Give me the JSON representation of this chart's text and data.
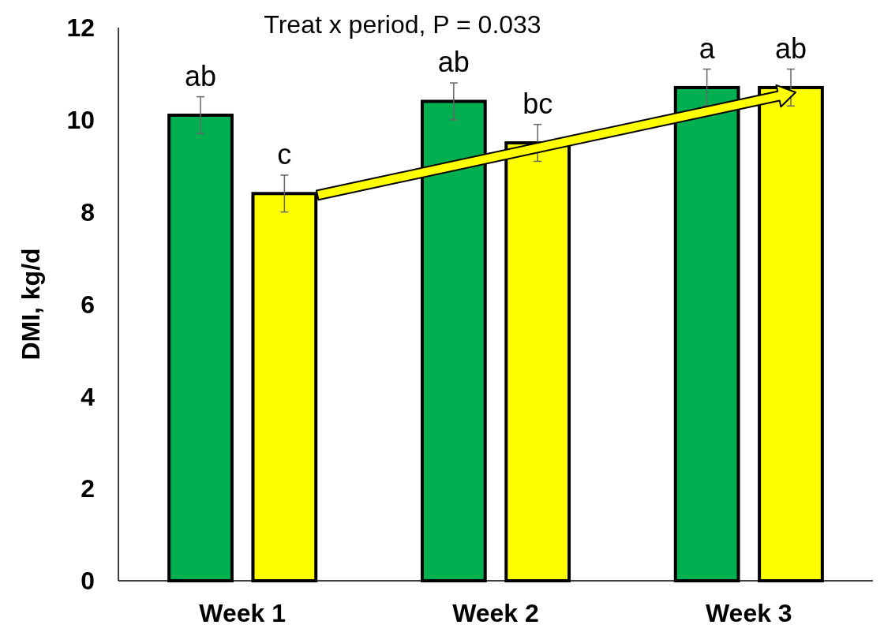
{
  "chart_data": {
    "type": "bar",
    "title": "Treat x period, P = 0.033",
    "ylabel": "DMI, kg/d",
    "categories": [
      "Week 1",
      "Week 2",
      "Week 3"
    ],
    "series": [
      {
        "color": "#00b050",
        "values": [
          10.1,
          10.4,
          10.7
        ],
        "errors": [
          0.4,
          0.4,
          0.4
        ]
      },
      {
        "color": "#ffff00",
        "values": [
          8.4,
          9.5,
          10.7
        ],
        "errors": [
          0.4,
          0.4,
          0.4
        ]
      }
    ],
    "ylim": [
      0,
      12
    ],
    "yticks": [
      0,
      2,
      4,
      6,
      8,
      10,
      12
    ],
    "grid": false,
    "annotations": [
      "ab",
      "c",
      "ab",
      "bc",
      "a",
      "ab"
    ]
  }
}
